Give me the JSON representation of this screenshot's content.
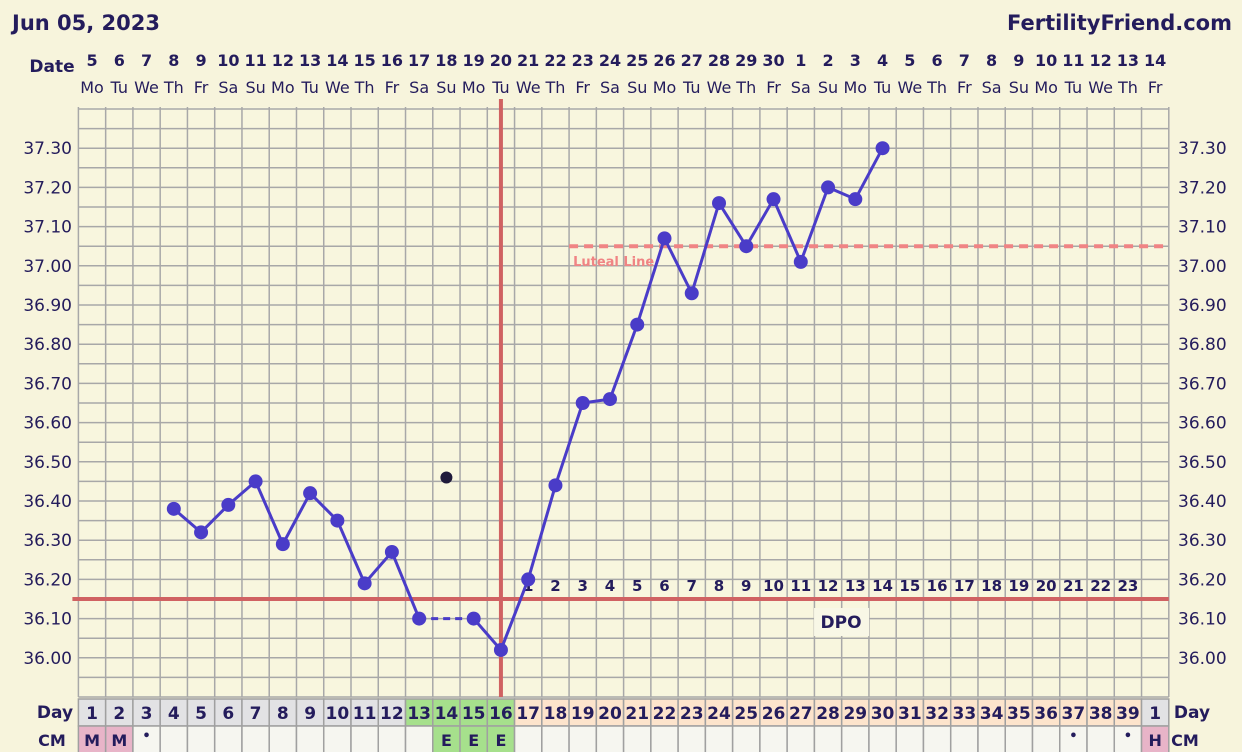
{
  "header": {
    "date": "Jun 05, 2023",
    "site": "FertilityFriend.com"
  },
  "labels": {
    "date": "Date",
    "day": "Day",
    "cm": "CM",
    "dpo": "DPO",
    "luteal": "Luteal Line"
  },
  "colors": {
    "temp_line": "#4a3cc8",
    "discarded": "#1f1a3a",
    "coverline": "#d06262",
    "luteal": "#f08484",
    "grid": "#a8a8a8",
    "plot_bg": "#f8f6de",
    "day_gray": "#e2e2e4",
    "day_green": "#a6e08c",
    "day_peach": "#fde4cc",
    "cm_pink": "#e8b4c8",
    "cm_green": "#a6e08c",
    "cm_blank": "#f6f6f0"
  },
  "chart_data": {
    "type": "line",
    "title": "",
    "dates": [
      "5",
      "6",
      "7",
      "8",
      "9",
      "10",
      "11",
      "12",
      "13",
      "14",
      "15",
      "16",
      "17",
      "18",
      "19",
      "20",
      "21",
      "22",
      "23",
      "24",
      "25",
      "26",
      "27",
      "28",
      "29",
      "30",
      "1",
      "2",
      "3",
      "4",
      "5",
      "6",
      "7",
      "8",
      "9",
      "10",
      "11",
      "12",
      "13",
      "14"
    ],
    "weekdays": [
      "Mo",
      "Tu",
      "We",
      "Th",
      "Fr",
      "Sa",
      "Su",
      "Mo",
      "Tu",
      "We",
      "Th",
      "Fr",
      "Sa",
      "Su",
      "Mo",
      "Tu",
      "We",
      "Th",
      "Fr",
      "Sa",
      "Su",
      "Mo",
      "Tu",
      "We",
      "Th",
      "Fr",
      "Sa",
      "Su",
      "Mo",
      "Tu",
      "We",
      "Th",
      "Fr",
      "Sa",
      "Su",
      "Mo",
      "Tu",
      "We",
      "Th",
      "Fr"
    ],
    "cycle_days": [
      "1",
      "2",
      "3",
      "4",
      "5",
      "6",
      "7",
      "8",
      "9",
      "10",
      "11",
      "12",
      "13",
      "14",
      "15",
      "16",
      "17",
      "18",
      "19",
      "20",
      "21",
      "22",
      "23",
      "24",
      "25",
      "26",
      "27",
      "28",
      "29",
      "30",
      "31",
      "32",
      "33",
      "34",
      "35",
      "36",
      "37",
      "38",
      "39",
      "1"
    ],
    "day_phase": [
      "gray",
      "gray",
      "gray",
      "gray",
      "gray",
      "gray",
      "gray",
      "gray",
      "gray",
      "gray",
      "gray",
      "gray",
      "green",
      "green",
      "green",
      "green",
      "peach",
      "peach",
      "peach",
      "peach",
      "peach",
      "peach",
      "peach",
      "peach",
      "peach",
      "peach",
      "peach",
      "peach",
      "peach",
      "peach",
      "peach",
      "peach",
      "peach",
      "peach",
      "peach",
      "peach",
      "peach",
      "peach",
      "peach",
      "gray"
    ],
    "temperatures": [
      null,
      null,
      null,
      36.38,
      36.32,
      36.39,
      36.45,
      36.29,
      36.42,
      36.35,
      36.19,
      36.27,
      36.1,
      36.46,
      36.1,
      36.02,
      36.2,
      36.44,
      36.65,
      36.66,
      36.85,
      37.07,
      36.93,
      37.16,
      37.05,
      37.17,
      37.01,
      37.2,
      37.17,
      37.3,
      null,
      null,
      null,
      null,
      null,
      null,
      null,
      null,
      null,
      null
    ],
    "discarded_days": [
      14
    ],
    "cervical_mucus": [
      "M",
      "M",
      "•",
      "",
      "",
      "",
      "",
      "",
      "",
      "",
      "",
      "",
      "",
      "E",
      "E",
      "E",
      "",
      "",
      "",
      "",
      "",
      "",
      "",
      "",
      "",
      "",
      "",
      "",
      "",
      "",
      "",
      "",
      "",
      "",
      "",
      "",
      "•",
      "",
      "•",
      "H"
    ],
    "cm_color": [
      "pink",
      "pink",
      "",
      "",
      "",
      "",
      "",
      "",
      "",
      "",
      "",
      "",
      "",
      "green",
      "green",
      "green",
      "",
      "",
      "",
      "",
      "",
      "",
      "",
      "",
      "",
      "",
      "",
      "",
      "",
      "",
      "",
      "",
      "",
      "",
      "",
      "",
      "",
      "",
      "",
      "pink"
    ],
    "coverline": 36.15,
    "luteal_line": 37.05,
    "luteal_start_day": 19,
    "ovulation_day": 16,
    "dpo_labels": [
      "1",
      "2",
      "3",
      "4",
      "5",
      "6",
      "7",
      "8",
      "9",
      "10",
      "11",
      "12",
      "13",
      "14",
      "15",
      "16",
      "17",
      "18",
      "19",
      "20",
      "21",
      "22",
      "23"
    ],
    "y_ticks": [
      "37.30",
      "37.20",
      "37.10",
      "37.00",
      "36.90",
      "36.80",
      "36.70",
      "36.60",
      "36.50",
      "36.40",
      "36.30",
      "36.20",
      "36.10",
      "36.00"
    ],
    "ylim": [
      35.9,
      37.4
    ],
    "grid": true,
    "grid_step": 0.05
  }
}
